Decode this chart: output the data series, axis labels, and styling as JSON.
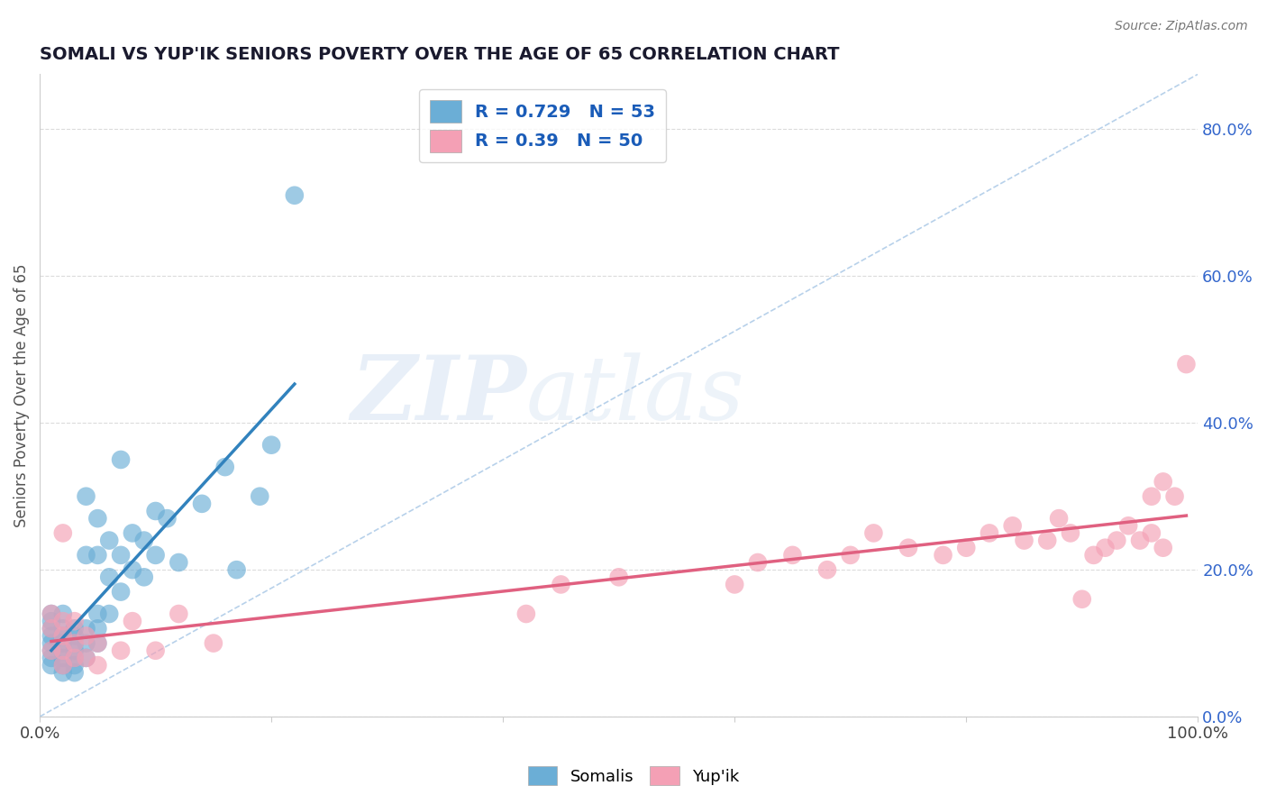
{
  "title": "SOMALI VS YUP'IK SENIORS POVERTY OVER THE AGE OF 65 CORRELATION CHART",
  "source_text": "Source: ZipAtlas.com",
  "ylabel": "Seniors Poverty Over the Age of 65",
  "watermark_zip": "ZIP",
  "watermark_atlas": "atlas",
  "somali_color": "#6baed6",
  "yupik_color": "#f4a0b5",
  "somali_line_color": "#3182bd",
  "yupik_line_color": "#e06080",
  "somali_R": 0.729,
  "somali_N": 53,
  "yupik_R": 0.39,
  "yupik_N": 50,
  "xlim": [
    0.0,
    1.0
  ],
  "ylim": [
    0.0,
    0.875
  ],
  "yticks_right": [
    0.0,
    0.2,
    0.4,
    0.6,
    0.8
  ],
  "ytick_labels_right": [
    "0.0%",
    "20.0%",
    "40.0%",
    "60.0%",
    "80.0%"
  ],
  "background_color": "#ffffff",
  "grid_color": "#d8d8d8",
  "somali_x": [
    0.01,
    0.01,
    0.01,
    0.01,
    0.01,
    0.01,
    0.01,
    0.01,
    0.02,
    0.02,
    0.02,
    0.02,
    0.02,
    0.02,
    0.02,
    0.02,
    0.03,
    0.03,
    0.03,
    0.03,
    0.03,
    0.03,
    0.03,
    0.04,
    0.04,
    0.04,
    0.04,
    0.04,
    0.05,
    0.05,
    0.05,
    0.05,
    0.05,
    0.06,
    0.06,
    0.06,
    0.07,
    0.07,
    0.07,
    0.08,
    0.08,
    0.09,
    0.09,
    0.1,
    0.1,
    0.11,
    0.12,
    0.14,
    0.16,
    0.17,
    0.19,
    0.2,
    0.22
  ],
  "somali_y": [
    0.07,
    0.08,
    0.09,
    0.1,
    0.11,
    0.12,
    0.13,
    0.14,
    0.06,
    0.07,
    0.08,
    0.09,
    0.1,
    0.11,
    0.12,
    0.14,
    0.06,
    0.07,
    0.08,
    0.09,
    0.1,
    0.11,
    0.12,
    0.08,
    0.1,
    0.12,
    0.22,
    0.3,
    0.1,
    0.12,
    0.14,
    0.22,
    0.27,
    0.14,
    0.19,
    0.24,
    0.17,
    0.22,
    0.35,
    0.2,
    0.25,
    0.19,
    0.24,
    0.22,
    0.28,
    0.27,
    0.21,
    0.29,
    0.34,
    0.2,
    0.3,
    0.37,
    0.71
  ],
  "yupik_x": [
    0.01,
    0.01,
    0.01,
    0.02,
    0.02,
    0.02,
    0.02,
    0.02,
    0.03,
    0.03,
    0.03,
    0.04,
    0.04,
    0.05,
    0.05,
    0.07,
    0.08,
    0.1,
    0.12,
    0.15,
    0.42,
    0.45,
    0.5,
    0.6,
    0.62,
    0.65,
    0.68,
    0.7,
    0.72,
    0.75,
    0.78,
    0.8,
    0.82,
    0.84,
    0.85,
    0.87,
    0.88,
    0.89,
    0.9,
    0.91,
    0.92,
    0.93,
    0.94,
    0.95,
    0.96,
    0.96,
    0.97,
    0.97,
    0.98,
    0.99
  ],
  "yupik_y": [
    0.09,
    0.12,
    0.14,
    0.07,
    0.09,
    0.11,
    0.13,
    0.25,
    0.08,
    0.1,
    0.13,
    0.08,
    0.11,
    0.07,
    0.1,
    0.09,
    0.13,
    0.09,
    0.14,
    0.1,
    0.14,
    0.18,
    0.19,
    0.18,
    0.21,
    0.22,
    0.2,
    0.22,
    0.25,
    0.23,
    0.22,
    0.23,
    0.25,
    0.26,
    0.24,
    0.24,
    0.27,
    0.25,
    0.16,
    0.22,
    0.23,
    0.24,
    0.26,
    0.24,
    0.25,
    0.3,
    0.23,
    0.32,
    0.3,
    0.48
  ]
}
